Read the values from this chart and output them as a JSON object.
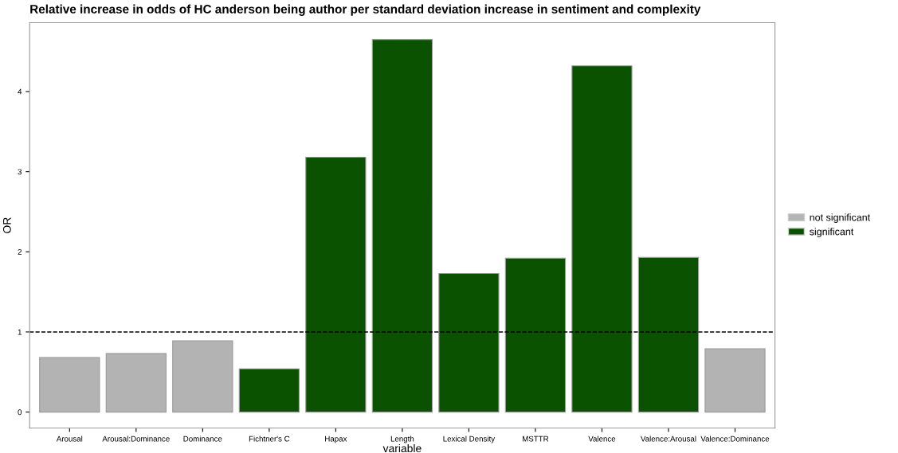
{
  "chart_data": {
    "type": "bar",
    "title": "Relative increase in odds of HC anderson being author per standard deviation increase in sentiment and complexity",
    "xlabel": "variable",
    "ylabel": "OR",
    "categories": [
      "Arousal",
      "Arousal:Dominance",
      "Dominance",
      "Fichtner's C",
      "Hapax",
      "Length",
      "Lexical Density",
      "MSTTR",
      "Valence",
      "Valence:Arousal",
      "Valence:Dominance"
    ],
    "series": [
      {
        "name": "not significant",
        "color": "#b3b3b3",
        "values": [
          0.68,
          0.73,
          0.89,
          null,
          null,
          null,
          null,
          null,
          null,
          null,
          0.79
        ]
      },
      {
        "name": "significant",
        "color": "#0b5200",
        "values": [
          null,
          null,
          null,
          0.54,
          3.18,
          4.65,
          1.73,
          1.92,
          4.32,
          1.93,
          null
        ]
      }
    ],
    "ylim": [
      -0.2,
      4.86
    ],
    "yticks": [
      0,
      1,
      2,
      3,
      4
    ],
    "ref_lines": [
      {
        "axis": "y",
        "value": 1,
        "line_style": "dashed",
        "color": "#000000"
      }
    ],
    "grid": false,
    "legend": "right"
  }
}
